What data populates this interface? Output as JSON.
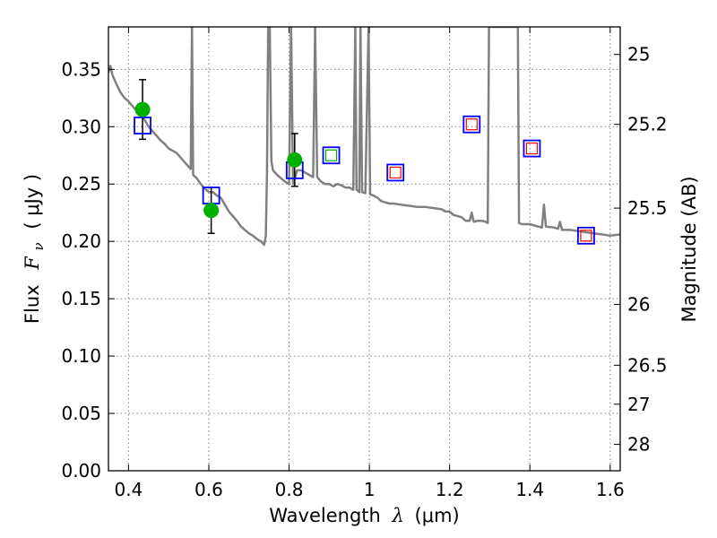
{
  "chart_data": {
    "type": "scatter",
    "title": "",
    "xlabel": {
      "prefix": "Wavelength",
      "symbol": "λ",
      "unit": "(μm)"
    },
    "ylabel": {
      "prefix": "Flux",
      "symbol": "F",
      "subscript": "ν",
      "unit": "( μJy )"
    },
    "y2label": "Magnitude (AB)",
    "xlim": [
      0.35,
      1.625
    ],
    "ylim": [
      0.0,
      0.387
    ],
    "grid": true,
    "x_ticks": [
      0.4,
      0.6,
      0.8,
      1.0,
      1.2,
      1.4,
      1.6
    ],
    "x_tick_labels": [
      "0.4",
      "0.6",
      "0.8",
      "1",
      "1.2",
      "1.4",
      "1.6"
    ],
    "y_ticks": [
      0.0,
      0.05,
      0.1,
      0.15,
      0.2,
      0.25,
      0.3,
      0.35
    ],
    "y_tick_labels": [
      "0.00",
      "0.05",
      "0.10",
      "0.15",
      "0.20",
      "0.25",
      "0.30",
      "0.35"
    ],
    "mag_ticks": [
      {
        "flux": 0.363,
        "label": "25"
      },
      {
        "flux": 0.302,
        "label": "25.2"
      },
      {
        "flux": 0.229,
        "label": "25.5"
      },
      {
        "flux": 0.145,
        "label": "26"
      },
      {
        "flux": 0.092,
        "label": "26.5"
      },
      {
        "flux": 0.058,
        "label": "27"
      },
      {
        "flux": 0.023,
        "label": "28"
      }
    ],
    "colors": {
      "sed": "#808080",
      "detected": "#00b000",
      "model_box": "#0000ff",
      "inner_green": "#00b000",
      "inner_red": "#ff0000",
      "errorbar": "#000000",
      "grid": "#808080"
    },
    "series": [
      {
        "type": "line",
        "points": [
          [
            0.35,
            0.347
          ],
          [
            0.355,
            0.353
          ],
          [
            0.36,
            0.345
          ],
          [
            0.37,
            0.337
          ],
          [
            0.38,
            0.33
          ],
          [
            0.39,
            0.325
          ],
          [
            0.4,
            0.322
          ],
          [
            0.41,
            0.318
          ],
          [
            0.42,
            0.314
          ],
          [
            0.43,
            0.31
          ],
          [
            0.44,
            0.306
          ],
          [
            0.45,
            0.3
          ],
          [
            0.46,
            0.296
          ],
          [
            0.47,
            0.292
          ],
          [
            0.48,
            0.288
          ],
          [
            0.49,
            0.285
          ],
          [
            0.5,
            0.281
          ],
          [
            0.51,
            0.279
          ],
          [
            0.52,
            0.277
          ],
          [
            0.53,
            0.273
          ],
          [
            0.54,
            0.269
          ],
          [
            0.55,
            0.265
          ],
          [
            0.555,
            0.263
          ],
          [
            0.558,
            0.387
          ],
          [
            0.561,
            0.258
          ],
          [
            0.57,
            0.255
          ],
          [
            0.58,
            0.25
          ],
          [
            0.59,
            0.246
          ],
          [
            0.6,
            0.243
          ],
          [
            0.61,
            0.243
          ],
          [
            0.62,
            0.24
          ],
          [
            0.63,
            0.238
          ],
          [
            0.64,
            0.232
          ],
          [
            0.65,
            0.226
          ],
          [
            0.66,
            0.222
          ],
          [
            0.67,
            0.218
          ],
          [
            0.68,
            0.213
          ],
          [
            0.69,
            0.21
          ],
          [
            0.7,
            0.207
          ],
          [
            0.71,
            0.205
          ],
          [
            0.72,
            0.202
          ],
          [
            0.73,
            0.2
          ],
          [
            0.738,
            0.197
          ],
          [
            0.742,
            0.205
          ],
          [
            0.745,
            0.26
          ],
          [
            0.748,
            0.387
          ],
          [
            0.752,
            0.387
          ],
          [
            0.756,
            0.27
          ],
          [
            0.76,
            0.262
          ],
          [
            0.77,
            0.258
          ],
          [
            0.78,
            0.255
          ],
          [
            0.79,
            0.252
          ],
          [
            0.8,
            0.25
          ],
          [
            0.805,
            0.387
          ],
          [
            0.81,
            0.25
          ],
          [
            0.82,
            0.262
          ],
          [
            0.83,
            0.262
          ],
          [
            0.84,
            0.26
          ],
          [
            0.85,
            0.258
          ],
          [
            0.86,
            0.256
          ],
          [
            0.865,
            0.387
          ],
          [
            0.87,
            0.256
          ],
          [
            0.88,
            0.252
          ],
          [
            0.89,
            0.25
          ],
          [
            0.9,
            0.25
          ],
          [
            0.91,
            0.248
          ],
          [
            0.92,
            0.25
          ],
          [
            0.93,
            0.249
          ],
          [
            0.94,
            0.247
          ],
          [
            0.95,
            0.247
          ],
          [
            0.96,
            0.245
          ],
          [
            0.965,
            0.387
          ],
          [
            0.968,
            0.245
          ],
          [
            0.975,
            0.243
          ],
          [
            0.978,
            0.387
          ],
          [
            0.982,
            0.243
          ],
          [
            0.99,
            0.242
          ],
          [
            0.998,
            0.387
          ],
          [
            1.002,
            0.241
          ],
          [
            1.01,
            0.24
          ],
          [
            1.02,
            0.238
          ],
          [
            1.03,
            0.235
          ],
          [
            1.04,
            0.234
          ],
          [
            1.05,
            0.233
          ],
          [
            1.06,
            0.233
          ],
          [
            1.08,
            0.232
          ],
          [
            1.1,
            0.231
          ],
          [
            1.12,
            0.23
          ],
          [
            1.14,
            0.23
          ],
          [
            1.16,
            0.229
          ],
          [
            1.18,
            0.228
          ],
          [
            1.19,
            0.226
          ],
          [
            1.2,
            0.226
          ],
          [
            1.21,
            0.223
          ],
          [
            1.22,
            0.222
          ],
          [
            1.23,
            0.221
          ],
          [
            1.24,
            0.218
          ],
          [
            1.25,
            0.218
          ],
          [
            1.255,
            0.225
          ],
          [
            1.26,
            0.217
          ],
          [
            1.27,
            0.218
          ],
          [
            1.28,
            0.218
          ],
          [
            1.29,
            0.217
          ],
          [
            1.295,
            0.216
          ],
          [
            1.298,
            0.387
          ],
          [
            1.37,
            0.387
          ],
          [
            1.373,
            0.216
          ],
          [
            1.38,
            0.215
          ],
          [
            1.4,
            0.215
          ],
          [
            1.42,
            0.213
          ],
          [
            1.43,
            0.212
          ],
          [
            1.435,
            0.232
          ],
          [
            1.44,
            0.213
          ],
          [
            1.46,
            0.212
          ],
          [
            1.47,
            0.211
          ],
          [
            1.475,
            0.217
          ],
          [
            1.48,
            0.21
          ],
          [
            1.5,
            0.21
          ],
          [
            1.52,
            0.209
          ],
          [
            1.54,
            0.208
          ],
          [
            1.56,
            0.207
          ],
          [
            1.58,
            0.206
          ],
          [
            1.6,
            0.205
          ],
          [
            1.625,
            0.206
          ]
        ]
      },
      {
        "type": "scatter",
        "marker": "filled-circle",
        "points": [
          {
            "x": 0.435,
            "y": 0.315,
            "yerr": 0.026
          },
          {
            "x": 0.606,
            "y": 0.227,
            "yerr": 0.02
          },
          {
            "x": 0.814,
            "y": 0.271,
            "yerr": 0.023
          }
        ]
      },
      {
        "type": "scatter",
        "marker": "open-square",
        "points": [
          {
            "x": 0.435,
            "y": 0.301,
            "inner": "none"
          },
          {
            "x": 0.606,
            "y": 0.24,
            "inner": "none"
          },
          {
            "x": 0.814,
            "y": 0.262,
            "inner": "none"
          },
          {
            "x": 0.905,
            "y": 0.275,
            "inner": "green"
          },
          {
            "x": 1.065,
            "y": 0.26,
            "inner": "red"
          },
          {
            "x": 1.255,
            "y": 0.302,
            "inner": "red"
          },
          {
            "x": 1.405,
            "y": 0.281,
            "inner": "red"
          },
          {
            "x": 1.54,
            "y": 0.205,
            "inner": "red"
          }
        ]
      }
    ]
  }
}
